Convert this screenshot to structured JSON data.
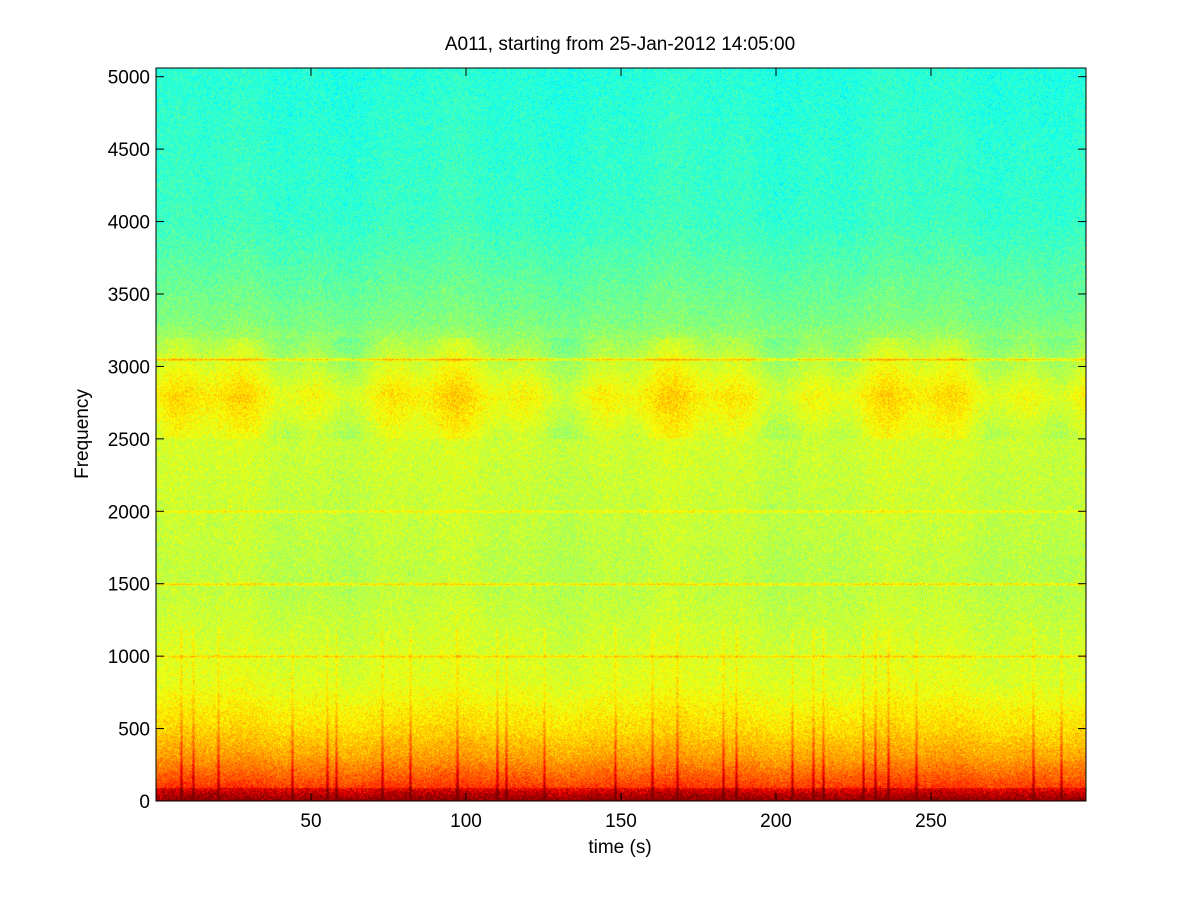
{
  "chart_data": {
    "type": "heatmap",
    "title": "A011, starting from 25-Jan-2012 14:05:00",
    "xlabel": "time (s)",
    "ylabel": "Frequency",
    "xlim": [
      0,
      300
    ],
    "ylim": [
      0,
      5060
    ],
    "x_ticks": [
      50,
      100,
      150,
      200,
      250
    ],
    "y_ticks": [
      0,
      500,
      1000,
      1500,
      2000,
      2500,
      3000,
      3500,
      4000,
      4500,
      5000
    ],
    "colormap": "jet",
    "colormap_colors": [
      "#00008f",
      "#0000ff",
      "#00ffff",
      "#ffff00",
      "#ff0000",
      "#800000"
    ],
    "grid": false,
    "background_level": {
      "description_points": [
        {
          "frequency": 0,
          "level": 0.95
        },
        {
          "frequency": 100,
          "level": 0.82
        },
        {
          "frequency": 300,
          "level": 0.72
        },
        {
          "frequency": 500,
          "level": 0.66
        },
        {
          "frequency": 800,
          "level": 0.6
        },
        {
          "frequency": 1500,
          "level": 0.56
        },
        {
          "frequency": 2500,
          "level": 0.58
        },
        {
          "frequency": 2800,
          "level": 0.63
        },
        {
          "frequency": 3300,
          "level": 0.5
        },
        {
          "frequency": 4000,
          "level": 0.43
        },
        {
          "frequency": 5060,
          "level": 0.41
        }
      ]
    },
    "tonal_lines": [
      {
        "frequency": 1000,
        "level": 0.64
      },
      {
        "frequency": 1500,
        "level": 0.64
      },
      {
        "frequency": 2000,
        "level": 0.6
      },
      {
        "frequency": 3050,
        "level": 0.66
      }
    ],
    "transient_times": [
      8,
      12,
      20,
      44,
      55,
      58,
      73,
      82,
      97,
      110,
      113,
      125,
      148,
      160,
      168,
      183,
      187,
      205,
      212,
      215,
      228,
      232,
      236,
      245,
      283,
      292
    ]
  }
}
